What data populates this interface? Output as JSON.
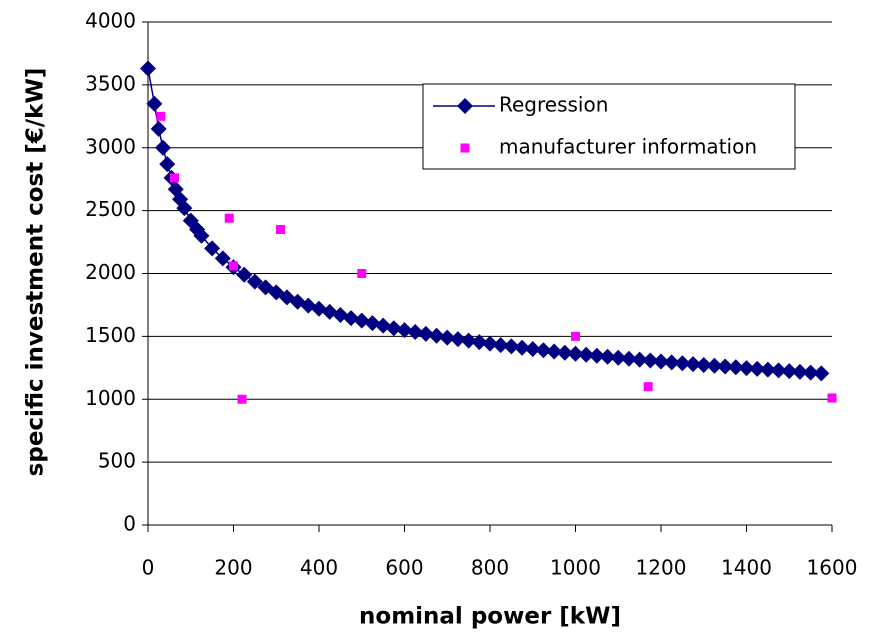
{
  "chart_data": {
    "type": "scatter",
    "x_label": "nominal power [kW]",
    "y_label": "specific investment cost [€/kW]",
    "xlim": [
      0,
      1600
    ],
    "xticks": [
      0,
      200,
      400,
      600,
      800,
      1000,
      1200,
      1400,
      1600
    ],
    "ylim": [
      0,
      4000
    ],
    "yticks": [
      0,
      500,
      1000,
      1500,
      2000,
      2500,
      3000,
      3500,
      4000
    ],
    "grid": true,
    "legend": "upper right",
    "series": [
      {
        "name": "Regression",
        "color": "#000080",
        "marker": "diamond",
        "line": true,
        "x": [
          0,
          15,
          25,
          35,
          45,
          55,
          65,
          75,
          85,
          100,
          115,
          125,
          150,
          175,
          200,
          225,
          250,
          275,
          300,
          325,
          350,
          375,
          400,
          425,
          450,
          475,
          500,
          525,
          550,
          575,
          600,
          625,
          650,
          675,
          700,
          725,
          750,
          775,
          800,
          825,
          850,
          875,
          900,
          925,
          950,
          975,
          1000,
          1025,
          1050,
          1075,
          1100,
          1125,
          1150,
          1175,
          1200,
          1225,
          1250,
          1275,
          1300,
          1325,
          1350,
          1375,
          1400,
          1425,
          1450,
          1475,
          1500,
          1525,
          1550,
          1575
        ],
        "values": [
          3630,
          3350,
          3150,
          3000,
          2870,
          2760,
          2670,
          2590,
          2520,
          2420,
          2350,
          2300,
          2200,
          2120,
          2050,
          1990,
          1935,
          1890,
          1850,
          1810,
          1775,
          1745,
          1720,
          1695,
          1670,
          1645,
          1625,
          1605,
          1585,
          1565,
          1550,
          1535,
          1520,
          1505,
          1490,
          1478,
          1466,
          1454,
          1442,
          1430,
          1420,
          1410,
          1400,
          1390,
          1380,
          1370,
          1362,
          1354,
          1346,
          1338,
          1330,
          1322,
          1315,
          1308,
          1300,
          1293,
          1286,
          1279,
          1272,
          1266,
          1260,
          1254,
          1248,
          1242,
          1236,
          1230,
          1224,
          1218,
          1212,
          1206
        ]
      },
      {
        "name": "manufacturer information",
        "color": "#ff00ff",
        "marker": "square",
        "line": false,
        "x": [
          30,
          62,
          190,
          200,
          220,
          310,
          500,
          1000,
          1170,
          1600
        ],
        "values": [
          3250,
          2760,
          2440,
          2060,
          1000,
          2350,
          2000,
          1500,
          1100,
          1010
        ]
      }
    ]
  }
}
